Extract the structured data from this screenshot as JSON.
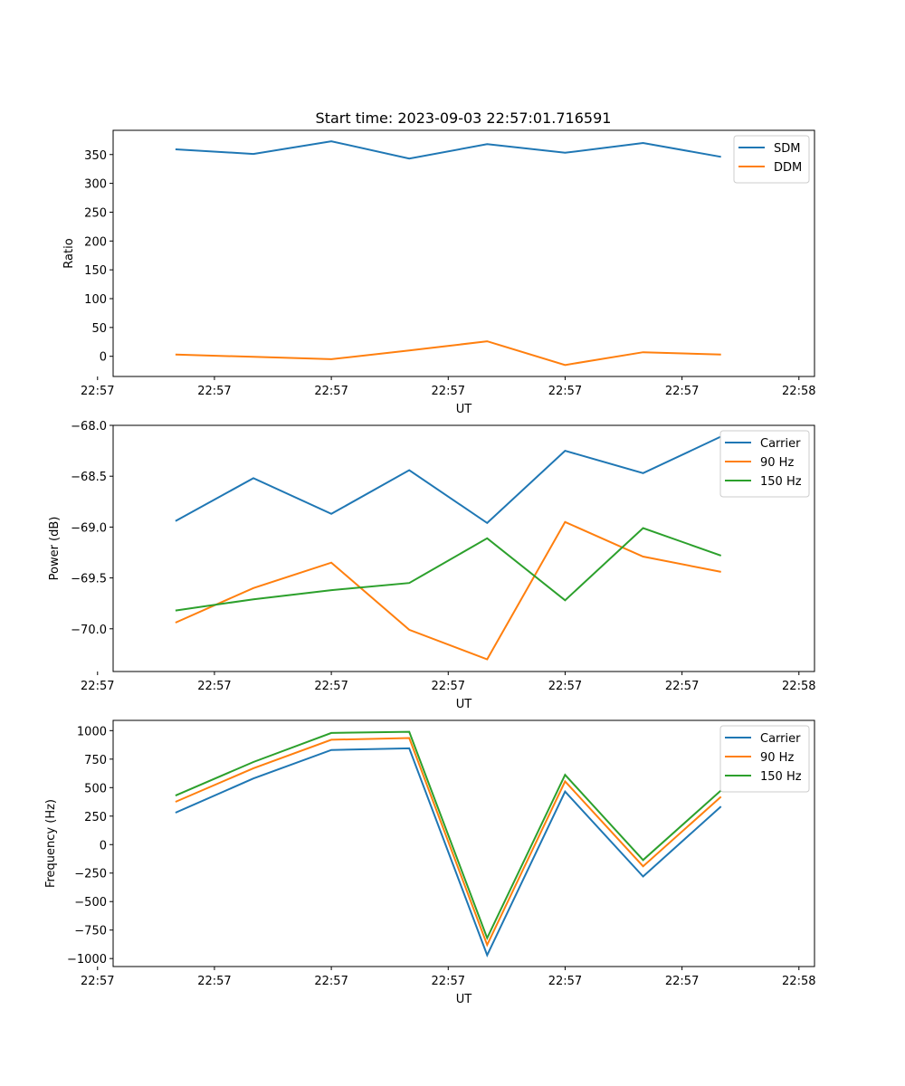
{
  "figure": {
    "title": "Start time: 2023-09-03 22:57:01.716591"
  },
  "colors": {
    "blue": "#1f77b4",
    "orange": "#ff7f0e",
    "green": "#2ca02c"
  },
  "chart_data": [
    {
      "type": "line",
      "title": "Start time: 2023-09-03 22:57:01.716591",
      "xlabel": "UT",
      "ylabel": "Ratio",
      "x": [
        1,
        2,
        3,
        4,
        5,
        6,
        7,
        8
      ],
      "xlim": [
        0.2,
        9.2
      ],
      "x_ticks": [
        0,
        1.5,
        3,
        4.5,
        6,
        7.5,
        9
      ],
      "x_tick_labels": [
        "22:57",
        "22:57",
        "22:57",
        "22:57",
        "22:57",
        "22:57",
        "22:58"
      ],
      "ylim": [
        -35,
        392
      ],
      "y_ticks": [
        0,
        50,
        100,
        150,
        200,
        250,
        300,
        350
      ],
      "y_tick_labels": [
        "0",
        "50",
        "100",
        "150",
        "200",
        "250",
        "300",
        "350"
      ],
      "legend_position": "top-right",
      "series": [
        {
          "name": "SDM",
          "color": "#1f77b4",
          "values": [
            359,
            351,
            373,
            343,
            368,
            353,
            370,
            346
          ]
        },
        {
          "name": "DDM",
          "color": "#ff7f0e",
          "values": [
            3,
            -1,
            -5,
            10,
            26,
            -15,
            7,
            3
          ]
        }
      ]
    },
    {
      "type": "line",
      "xlabel": "UT",
      "ylabel": "Power (dB)",
      "x": [
        1,
        2,
        3,
        4,
        5,
        6,
        7,
        8
      ],
      "xlim": [
        0.2,
        9.2
      ],
      "x_ticks": [
        0,
        1.5,
        3,
        4.5,
        6,
        7.5,
        9
      ],
      "x_tick_labels": [
        "22:57",
        "22:57",
        "22:57",
        "22:57",
        "22:57",
        "22:57",
        "22:58"
      ],
      "ylim": [
        -70.42,
        -68.0
      ],
      "y_ticks": [
        -70.0,
        -69.5,
        -69.0,
        -68.5,
        -68.0
      ],
      "y_tick_labels": [
        "−70.0",
        "−69.5",
        "−69.0",
        "−68.5",
        "−68.0"
      ],
      "legend_position": "top-right",
      "series": [
        {
          "name": "Carrier",
          "color": "#1f77b4",
          "values": [
            -68.94,
            -68.52,
            -68.87,
            -68.44,
            -68.96,
            -68.25,
            -68.47,
            -68.11
          ]
        },
        {
          "name": "90 Hz",
          "color": "#ff7f0e",
          "values": [
            -69.94,
            -69.6,
            -69.35,
            -70.01,
            -70.3,
            -68.95,
            -69.29,
            -69.44
          ]
        },
        {
          "name": "150 Hz",
          "color": "#2ca02c",
          "values": [
            -69.82,
            -69.71,
            -69.62,
            -69.55,
            -69.11,
            -69.72,
            -69.01,
            -69.28
          ]
        }
      ]
    },
    {
      "type": "line",
      "xlabel": "UT",
      "ylabel": "Frequency (Hz)",
      "x": [
        1,
        2,
        3,
        4,
        5,
        6,
        7,
        8
      ],
      "xlim": [
        0.2,
        9.2
      ],
      "x_ticks": [
        0,
        1.5,
        3,
        4.5,
        6,
        7.5,
        9
      ],
      "x_tick_labels": [
        "22:57",
        "22:57",
        "22:57",
        "22:57",
        "22:57",
        "22:57",
        "22:58"
      ],
      "ylim": [
        -1070,
        1090
      ],
      "y_ticks": [
        -1000,
        -750,
        -500,
        -250,
        0,
        250,
        500,
        750,
        1000
      ],
      "y_tick_labels": [
        "−1000",
        "−750",
        "−500",
        "−250",
        "0",
        "250",
        "500",
        "750",
        "1000"
      ],
      "legend_position": "top-right",
      "series": [
        {
          "name": "Carrier",
          "color": "#1f77b4",
          "values": [
            280,
            580,
            830,
            845,
            -970,
            465,
            -280,
            335
          ]
        },
        {
          "name": "90 Hz",
          "color": "#ff7f0e",
          "values": [
            375,
            670,
            920,
            935,
            -880,
            555,
            -190,
            420
          ]
        },
        {
          "name": "150 Hz",
          "color": "#2ca02c",
          "values": [
            430,
            725,
            980,
            990,
            -820,
            612,
            -135,
            475
          ]
        }
      ]
    }
  ]
}
